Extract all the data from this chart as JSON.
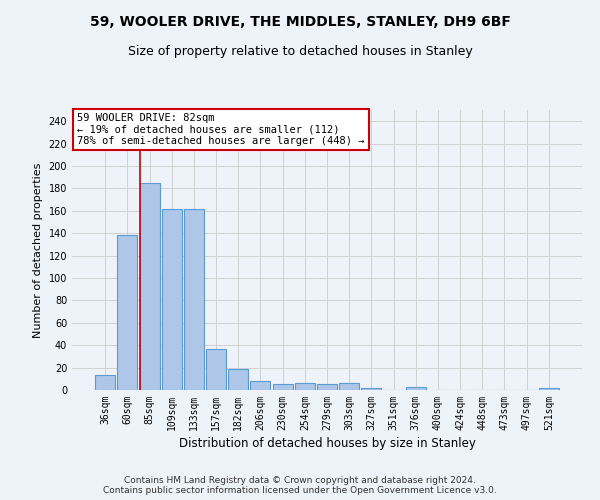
{
  "title": "59, WOOLER DRIVE, THE MIDDLES, STANLEY, DH9 6BF",
  "subtitle": "Size of property relative to detached houses in Stanley",
  "xlabel": "Distribution of detached houses by size in Stanley",
  "ylabel": "Number of detached properties",
  "categories": [
    "36sqm",
    "60sqm",
    "85sqm",
    "109sqm",
    "133sqm",
    "157sqm",
    "182sqm",
    "206sqm",
    "230sqm",
    "254sqm",
    "279sqm",
    "303sqm",
    "327sqm",
    "351sqm",
    "376sqm",
    "400sqm",
    "424sqm",
    "448sqm",
    "473sqm",
    "497sqm",
    "521sqm"
  ],
  "values": [
    13,
    138,
    185,
    162,
    162,
    37,
    19,
    8,
    5,
    6,
    5,
    6,
    2,
    0,
    3,
    0,
    0,
    0,
    0,
    0,
    2
  ],
  "bar_color": "#aec6e8",
  "bar_edge_color": "#5b9bd5",
  "bar_edge_width": 0.8,
  "grid_color": "#d0d0d0",
  "background_color": "#eef2f9",
  "vline_x_index": 2,
  "vline_color": "#cc0000",
  "annotation_text": "59 WOOLER DRIVE: 82sqm\n← 19% of detached houses are smaller (112)\n78% of semi-detached houses are larger (448) →",
  "annotation_box_color": "#ffffff",
  "annotation_box_edge_color": "#cc0000",
  "ylim": [
    0,
    250
  ],
  "yticks": [
    0,
    20,
    40,
    60,
    80,
    100,
    120,
    140,
    160,
    180,
    200,
    220,
    240
  ],
  "footer_text": "Contains HM Land Registry data © Crown copyright and database right 2024.\nContains public sector information licensed under the Open Government Licence v3.0.",
  "title_fontsize": 10,
  "subtitle_fontsize": 9,
  "xlabel_fontsize": 8.5,
  "ylabel_fontsize": 8,
  "tick_fontsize": 7,
  "annotation_fontsize": 7.5,
  "footer_fontsize": 6.5
}
